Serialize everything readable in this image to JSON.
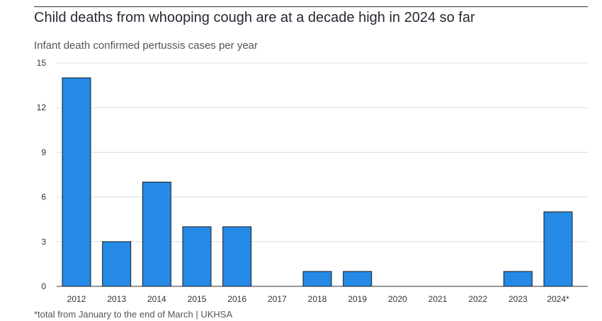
{
  "chart_data": {
    "type": "bar",
    "title": "Child deaths from whooping cough are at a decade high in 2024 so far",
    "subtitle": "Infant death confirmed pertussis cases per year",
    "categories": [
      "2012",
      "2013",
      "2014",
      "2015",
      "2016",
      "2017",
      "2018",
      "2019",
      "2020",
      "2021",
      "2022",
      "2023",
      "2024*"
    ],
    "values": [
      14,
      3,
      7,
      4,
      4,
      0,
      1,
      1,
      0,
      0,
      0,
      1,
      5
    ],
    "ylim": [
      0,
      15
    ],
    "yticks": [
      0,
      3,
      6,
      9,
      12,
      15
    ],
    "grid": true,
    "bar_color": "#2589e6",
    "footnote": "*total from January to the end of March  | UKHSA"
  }
}
